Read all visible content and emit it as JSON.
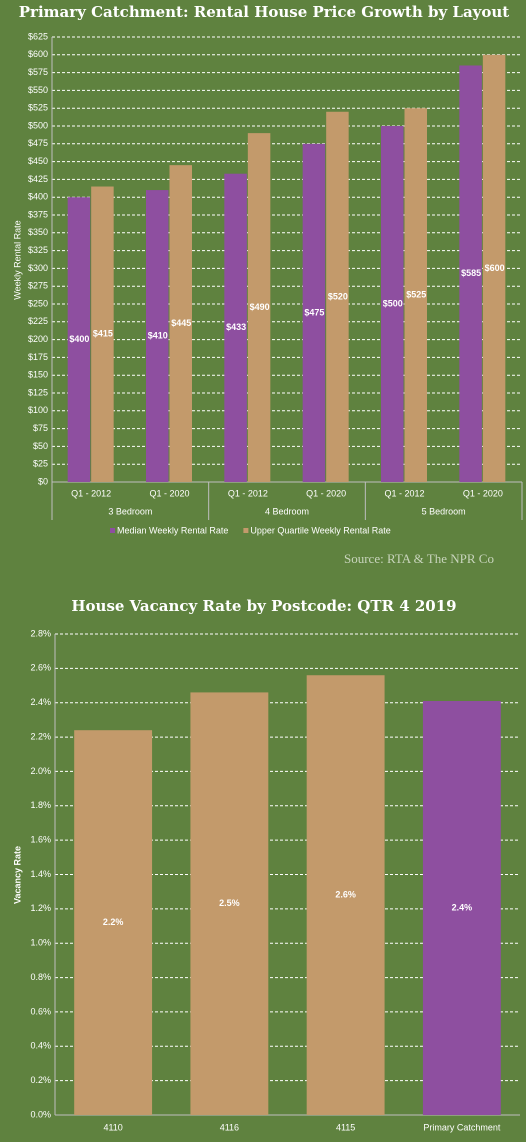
{
  "chart_data": [
    {
      "type": "bar",
      "title": "Primary Catchment: Rental House Price Growth by Layout",
      "ylabel": "Weekly Rental Rate",
      "groups": [
        "3 Bedroom",
        "4 Bedroom",
        "5 Bedroom"
      ],
      "categories": [
        "Q1 - 2012",
        "Q1 - 2020",
        "Q1 - 2012",
        "Q1 - 2020",
        "Q1 - 2012",
        "Q1 - 2020"
      ],
      "series": [
        {
          "name": "Median Weekly Rental Rate",
          "color": "#8e4fa0",
          "values": [
            400,
            410,
            433,
            475,
            500,
            585
          ],
          "value_labels": [
            "$400",
            "$410",
            "$433",
            "$475",
            "$500",
            "$585"
          ]
        },
        {
          "name": "Upper Quartile Weekly Rental Rate",
          "color": "#c39a6b",
          "values": [
            415,
            445,
            490,
            520,
            525,
            600
          ],
          "value_labels": [
            "$415",
            "$445",
            "$490",
            "$520",
            "$525",
            "$600"
          ]
        }
      ],
      "ylim": [
        0,
        625
      ],
      "yticks": [
        {
          "value": 0,
          "label": "$0"
        },
        {
          "value": 25,
          "label": "$25"
        },
        {
          "value": 50,
          "label": "$50"
        },
        {
          "value": 75,
          "label": "$75"
        },
        {
          "value": 100,
          "label": "$100"
        },
        {
          "value": 125,
          "label": "$125"
        },
        {
          "value": 150,
          "label": "$150"
        },
        {
          "value": 175,
          "label": "$175"
        },
        {
          "value": 200,
          "label": "$200"
        },
        {
          "value": 225,
          "label": "$225"
        },
        {
          "value": 250,
          "label": "$250"
        },
        {
          "value": 275,
          "label": "$275"
        },
        {
          "value": 300,
          "label": "$300"
        },
        {
          "value": 325,
          "label": "$325"
        },
        {
          "value": 350,
          "label": "$350"
        },
        {
          "value": 375,
          "label": "$375"
        },
        {
          "value": 400,
          "label": "$400"
        },
        {
          "value": 425,
          "label": "$425"
        },
        {
          "value": 450,
          "label": "$450"
        },
        {
          "value": 475,
          "label": "$475"
        },
        {
          "value": 500,
          "label": "$500"
        },
        {
          "value": 525,
          "label": "$525"
        },
        {
          "value": 550,
          "label": "$550"
        },
        {
          "value": 575,
          "label": "$575"
        },
        {
          "value": 600,
          "label": "$600"
        },
        {
          "value": 625,
          "label": "$625"
        }
      ],
      "grid": true,
      "legend": "bottom",
      "source": "Source: RTA & The NPR Co"
    },
    {
      "type": "bar",
      "title": "House Vacancy Rate by Postcode: QTR 4 2019",
      "ylabel": "Vacancy Rate",
      "categories": [
        "4110",
        "4116",
        "4115",
        "Primary Catchment"
      ],
      "values": [
        2.24,
        2.46,
        2.56,
        2.41
      ],
      "value_labels": [
        "2.2%",
        "2.5%",
        "2.6%",
        "2.4%"
      ],
      "colors": [
        "#c39a6b",
        "#c39a6b",
        "#c39a6b",
        "#8e4fa0"
      ],
      "ylim": [
        0,
        2.8
      ],
      "yticks": [
        {
          "value": 0,
          "label": "0.0%"
        },
        {
          "value": 0.2,
          "label": "0.2%"
        },
        {
          "value": 0.4,
          "label": "0.4%"
        },
        {
          "value": 0.6,
          "label": "0.6%"
        },
        {
          "value": 0.8,
          "label": "0.8%"
        },
        {
          "value": 1.0,
          "label": "1.0%"
        },
        {
          "value": 1.2,
          "label": "1.2%"
        },
        {
          "value": 1.4,
          "label": "1.4%"
        },
        {
          "value": 1.6,
          "label": "1.6%"
        },
        {
          "value": 1.8,
          "label": "1.8%"
        },
        {
          "value": 2.0,
          "label": "2.0%"
        },
        {
          "value": 2.2,
          "label": "2.2%"
        },
        {
          "value": 2.4,
          "label": "2.4%"
        },
        {
          "value": 2.6,
          "label": "2.6%"
        },
        {
          "value": 2.8,
          "label": "2.8%"
        }
      ],
      "grid": true
    }
  ]
}
